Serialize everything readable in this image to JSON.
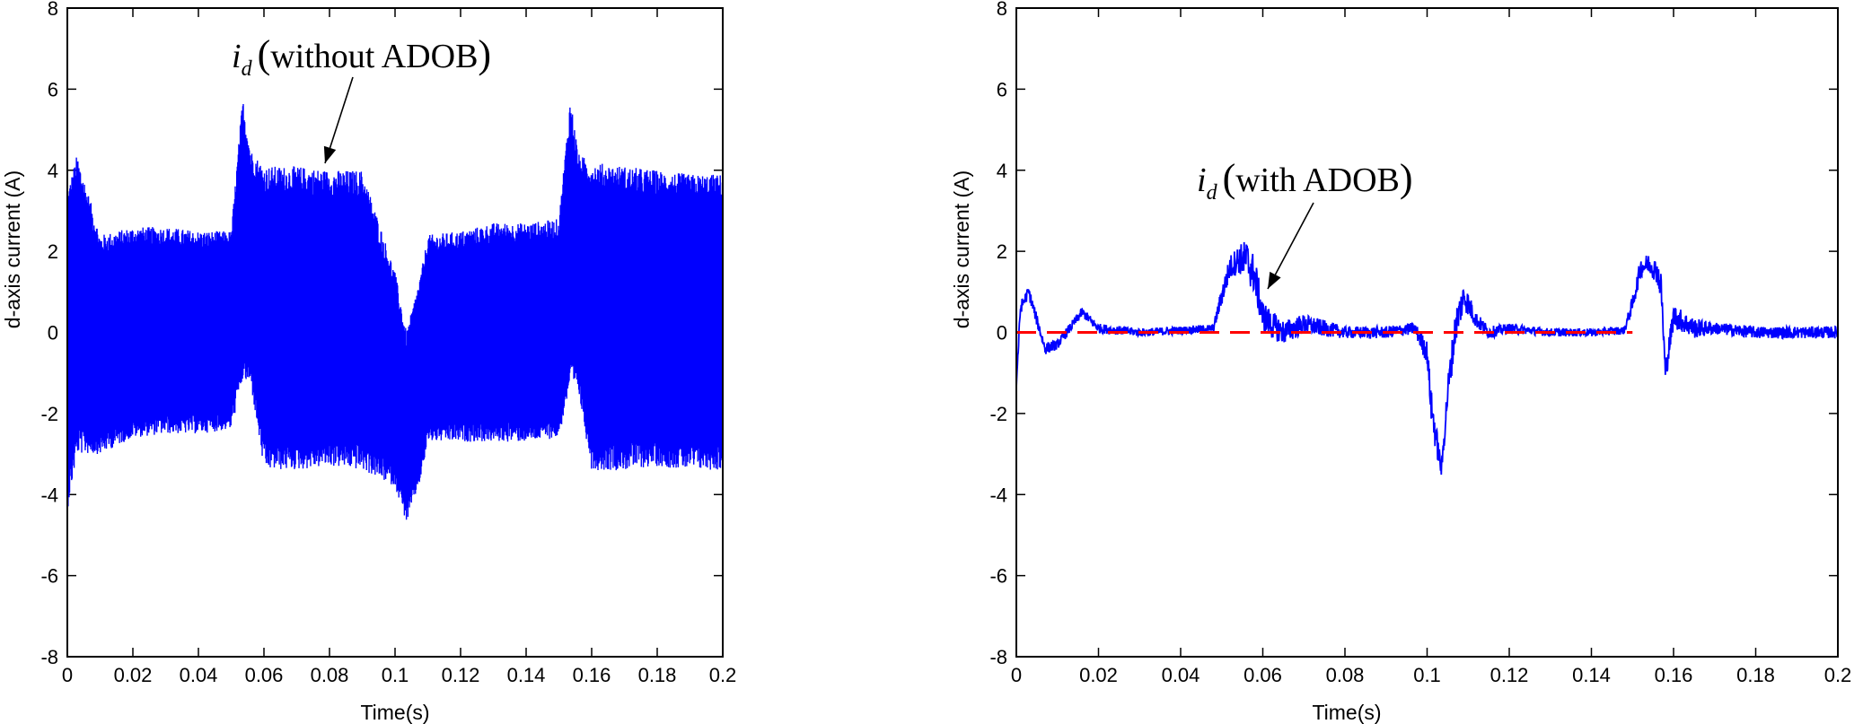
{
  "chart_data": [
    {
      "type": "line",
      "title": "",
      "xlabel": "Time(s)",
      "ylabel": "d-axis current (A)",
      "xlim": [
        0,
        0.2
      ],
      "ylim": [
        -8,
        8
      ],
      "xticks": [
        "0",
        "0.02",
        "0.04",
        "0.06",
        "0.08",
        "0.1",
        "0.12",
        "0.14",
        "0.16",
        "0.18",
        "0.2"
      ],
      "yticks": [
        "-8",
        "-6",
        "-4",
        "-2",
        "0",
        "2",
        "4",
        "6",
        "8"
      ],
      "grid": false,
      "series": [
        {
          "color": "#0000ff",
          "x": [
            0,
            0.003,
            0.01,
            0.02,
            0.03,
            0.04,
            0.05,
            0.0535,
            0.056,
            0.06,
            0.07,
            0.08,
            0.09,
            0.1,
            0.1035,
            0.108,
            0.11,
            0.12,
            0.13,
            0.14,
            0.15,
            0.1535,
            0.156,
            0.16,
            0.17,
            0.18,
            0.19,
            0.2
          ],
          "upper": [
            3.5,
            4.4,
            2.4,
            2.6,
            2.6,
            2.5,
            2.5,
            5.8,
            4.5,
            4.1,
            4.1,
            4.0,
            4.0,
            1.5,
            0.0,
            1.5,
            2.4,
            2.5,
            2.7,
            2.7,
            2.8,
            5.8,
            4.4,
            4.2,
            4.1,
            4.0,
            3.9,
            3.9
          ],
          "lower": [
            -4.4,
            -3.0,
            -3.0,
            -2.6,
            -2.5,
            -2.5,
            -2.4,
            -1.2,
            -1.3,
            -3.4,
            -3.4,
            -3.3,
            -3.4,
            -3.8,
            -4.7,
            -3.6,
            -2.7,
            -2.7,
            -2.7,
            -2.7,
            -2.6,
            -1.3,
            -1.5,
            -3.4,
            -3.4,
            -3.3,
            -3.4,
            -3.4
          ]
        }
      ],
      "annotations": [
        {
          "symbol": "i",
          "subscript": "d",
          "text": "without ADOB",
          "x": 0.06,
          "y": 4.2
        }
      ]
    },
    {
      "type": "line",
      "title": "",
      "xlabel": "Time(s)",
      "ylabel": "d-axis current (A)",
      "xlim": [
        0,
        0.2
      ],
      "ylim": [
        -8,
        8
      ],
      "xticks": [
        "0",
        "0.02",
        "0.04",
        "0.06",
        "0.08",
        "0.1",
        "0.12",
        "0.14",
        "0.16",
        "0.18",
        "0.2"
      ],
      "yticks": [
        "-8",
        "-6",
        "-4",
        "-2",
        "0",
        "2",
        "4",
        "6",
        "8"
      ],
      "grid": false,
      "series": [
        {
          "color": "#0000ff",
          "x": [
            0,
            0.001,
            0.003,
            0.005,
            0.007,
            0.01,
            0.013,
            0.016,
            0.02,
            0.03,
            0.04,
            0.048,
            0.05,
            0.052,
            0.054,
            0.056,
            0.058,
            0.06,
            0.062,
            0.065,
            0.07,
            0.08,
            0.09,
            0.097,
            0.1,
            0.101,
            0.102,
            0.1035,
            0.105,
            0.107,
            0.109,
            0.112,
            0.115,
            0.12,
            0.13,
            0.14,
            0.148,
            0.15,
            0.152,
            0.154,
            0.156,
            0.157,
            0.158,
            0.16,
            0.165,
            0.17,
            0.18,
            0.19,
            0.2
          ],
          "y": [
            -1.3,
            0.6,
            1.0,
            0.3,
            -0.4,
            -0.3,
            0.1,
            0.5,
            0.1,
            0.0,
            0.05,
            0.1,
            0.9,
            1.6,
            1.8,
            1.8,
            1.4,
            0.4,
            0.2,
            0.0,
            0.2,
            0.0,
            0.0,
            0.1,
            -0.5,
            -1.8,
            -2.5,
            -3.4,
            -1.5,
            0.2,
            0.9,
            0.3,
            0.0,
            0.1,
            0.0,
            0.0,
            0.05,
            0.7,
            1.6,
            1.7,
            1.5,
            1.1,
            -1.0,
            0.4,
            0.1,
            0.1,
            0.0,
            0.0,
            0.0
          ],
          "noise": [
            0.15,
            0.15,
            0.15,
            0.15,
            0.15,
            0.12,
            0.12,
            0.12,
            0.12,
            0.1,
            0.1,
            0.1,
            0.25,
            0.3,
            0.35,
            0.5,
            0.5,
            0.4,
            0.35,
            0.3,
            0.25,
            0.15,
            0.15,
            0.15,
            0.3,
            0.4,
            0.4,
            0.2,
            0.4,
            0.45,
            0.35,
            0.2,
            0.15,
            0.12,
            0.1,
            0.1,
            0.1,
            0.2,
            0.25,
            0.25,
            0.3,
            0.35,
            0.3,
            0.3,
            0.25,
            0.15,
            0.15,
            0.15,
            0.15
          ]
        },
        {
          "color": "#ff0000",
          "dashed": true,
          "x": [
            0,
            0.2
          ],
          "y": [
            0,
            0
          ],
          "dashed_until": 0.15
        }
      ],
      "annotations": [
        {
          "symbol": "i",
          "subscript": "d",
          "text": "with ADOB",
          "x": 0.06,
          "y": 1.0
        }
      ]
    }
  ]
}
